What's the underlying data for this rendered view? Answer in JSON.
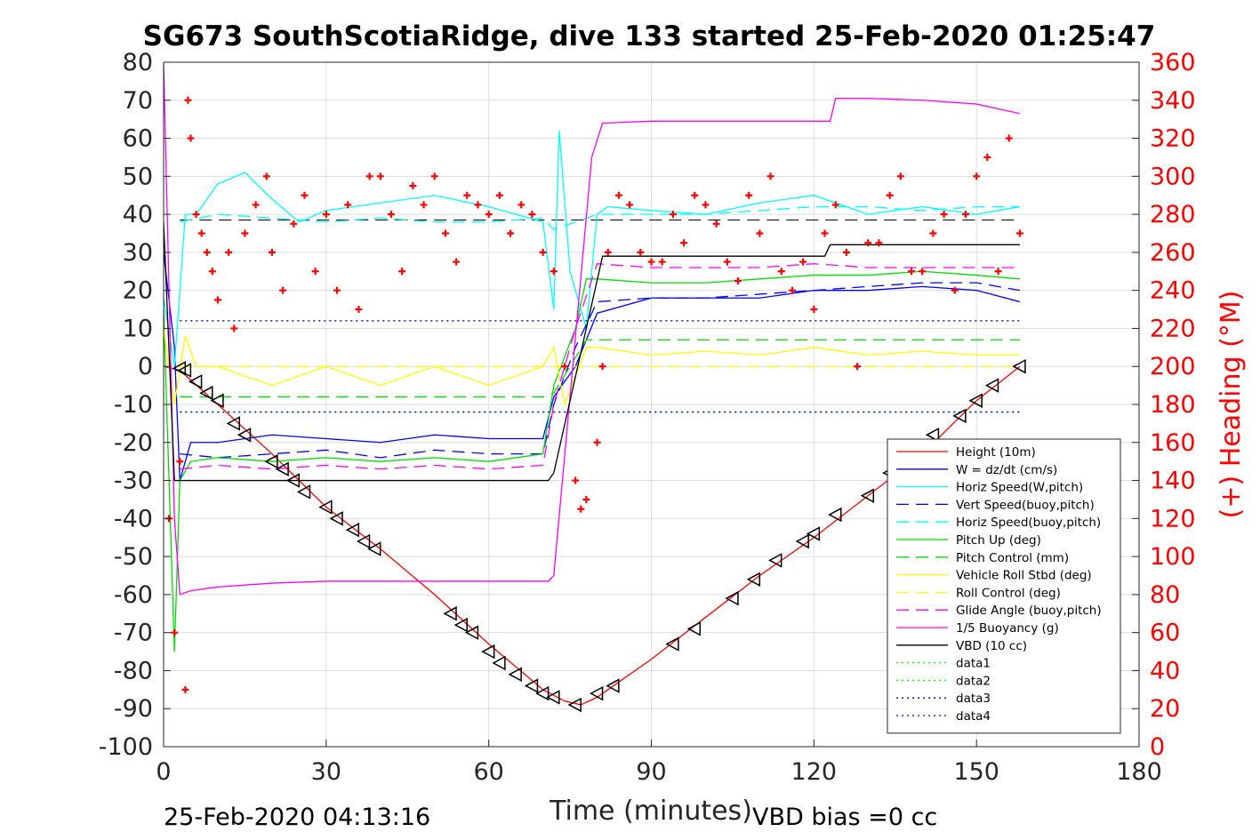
{
  "chart_data": {
    "type": "line",
    "title": "SG673 SouthScotiaRidge, dive 133 started 25-Feb-2020 01:25:47",
    "xlabel": "Time (minutes)",
    "ylabel": "",
    "ylabel_right": "(+) Heading (°M)",
    "xlim": [
      0,
      180
    ],
    "ylim": [
      -100,
      80
    ],
    "ylim_right": [
      0,
      360
    ],
    "x_ticks": [
      0,
      30,
      60,
      90,
      120,
      150,
      180
    ],
    "y_ticks": [
      80,
      70,
      60,
      50,
      40,
      30,
      20,
      10,
      0,
      -10,
      -20,
      -30,
      -40,
      -50,
      -60,
      -70,
      -80,
      -90,
      -100
    ],
    "y_right_ticks": [
      360,
      340,
      320,
      300,
      280,
      260,
      240,
      220,
      200,
      180,
      160,
      140,
      120,
      100,
      80,
      60,
      40,
      20,
      0
    ],
    "grid": true,
    "legend_position": "bottom-right",
    "footer_left": "25-Feb-2020 04:13:16",
    "footer_right": "VBD bias =0 cc",
    "series": [
      {
        "name": "Height (10m)",
        "color": "#ff0000",
        "style": "solid",
        "x": [
          0,
          3,
          10,
          20,
          30,
          40,
          50,
          60,
          70,
          74,
          77,
          80,
          90,
          100,
          110,
          120,
          130,
          140,
          150,
          158
        ],
        "y": [
          0,
          -1,
          -10,
          -23,
          -37,
          -48,
          -60,
          -73,
          -85,
          -88,
          -89,
          -87,
          -77,
          -66,
          -55,
          -45,
          -34,
          -23,
          -9,
          0
        ]
      },
      {
        "name": "W = dz/dt (cm/s)",
        "color": "#0000ff",
        "style": "solid",
        "x": [
          0,
          2,
          3,
          5,
          10,
          20,
          30,
          40,
          50,
          60,
          70,
          72,
          76,
          80,
          90,
          100,
          110,
          120,
          130,
          140,
          150,
          158
        ],
        "y": [
          30,
          5,
          -30,
          -20,
          -20,
          -18,
          -19,
          -20,
          -18,
          -19,
          -19,
          -8,
          0,
          14,
          18,
          18,
          18,
          20,
          20,
          21,
          20,
          17
        ]
      },
      {
        "name": "Horiz Speed(W,pitch)",
        "color": "#00ffff",
        "style": "solid",
        "x": [
          0,
          2,
          4,
          6,
          10,
          15,
          20,
          25,
          30,
          40,
          50,
          60,
          70,
          72,
          73,
          75,
          78,
          80,
          82,
          90,
          100,
          110,
          120,
          130,
          140,
          150,
          158
        ],
        "y": [
          18,
          0,
          40,
          40,
          48,
          51,
          44,
          38,
          41,
          43,
          45,
          42,
          38,
          15,
          62,
          25,
          10,
          40,
          42,
          41,
          40,
          43,
          45,
          40,
          42,
          40,
          42
        ]
      },
      {
        "name": "Vert Speed(buoy,pitch)",
        "color": "#0000ff",
        "style": "dashed",
        "x": [
          3,
          10,
          20,
          30,
          40,
          50,
          60,
          70,
          72,
          76,
          80,
          90,
          100,
          110,
          120,
          130,
          140,
          150,
          158
        ],
        "y": [
          -23,
          -24,
          -23,
          -22,
          -24,
          -22,
          -23,
          -23,
          -10,
          5,
          17,
          18,
          18,
          19,
          20,
          21,
          22,
          22,
          20
        ]
      },
      {
        "name": "Horiz Speed(buoy,pitch)",
        "color": "#00ffff",
        "style": "dashed",
        "x": [
          3,
          10,
          20,
          30,
          40,
          50,
          60,
          70,
          72,
          80,
          90,
          100,
          110,
          120,
          130,
          140,
          150,
          158
        ],
        "y": [
          38,
          40,
          39,
          38,
          39,
          38,
          38,
          39,
          36,
          40,
          40,
          40,
          41,
          42,
          42,
          41,
          42,
          42
        ]
      },
      {
        "name": "Pitch Up (deg)",
        "color": "#00dd00",
        "style": "solid",
        "x": [
          0,
          2,
          3,
          5,
          10,
          20,
          30,
          40,
          50,
          60,
          70,
          72,
          76,
          78,
          80,
          90,
          100,
          110,
          120,
          130,
          140,
          150,
          158
        ],
        "y": [
          15,
          -75,
          -30,
          -25,
          -24,
          -25,
          -24,
          -25,
          -24,
          -25,
          -23,
          -5,
          10,
          23,
          23,
          22,
          22,
          23,
          24,
          24,
          25,
          24,
          23
        ]
      },
      {
        "name": "Pitch Control (mm)",
        "color": "#00dd00",
        "style": "dashed",
        "x": [
          3,
          10,
          20,
          30,
          40,
          50,
          60,
          70,
          72,
          78,
          80,
          90,
          100,
          110,
          120,
          130,
          140,
          150,
          158
        ],
        "y": [
          -8,
          -8,
          -8,
          -8,
          -8,
          -8,
          -8,
          -8,
          -7,
          7,
          7,
          7,
          7,
          7,
          7,
          7,
          7,
          7,
          7
        ]
      },
      {
        "name": "Vehicle Roll Stbd (deg)",
        "color": "#ffff00",
        "style": "solid",
        "x": [
          0,
          2,
          4,
          6,
          10,
          20,
          30,
          40,
          50,
          60,
          70,
          72,
          74,
          78,
          80,
          90,
          100,
          110,
          120,
          130,
          140,
          150,
          158
        ],
        "y": [
          10,
          -10,
          8,
          0,
          0,
          -5,
          0,
          -5,
          0,
          -5,
          0,
          5,
          -10,
          5,
          5,
          3,
          4,
          3,
          5,
          3,
          4,
          3,
          3
        ]
      },
      {
        "name": "Roll Control (deg)",
        "color": "#ffff00",
        "style": "dashed",
        "x": [
          3,
          10,
          20,
          30,
          40,
          50,
          60,
          70,
          72,
          78,
          80,
          90,
          100,
          110,
          120,
          130,
          140,
          150,
          158
        ],
        "y": [
          0,
          0,
          0,
          0,
          0,
          0,
          0,
          0,
          0,
          0,
          0,
          0,
          0,
          0,
          0,
          0,
          0,
          0,
          0
        ]
      },
      {
        "name": "Glide Angle (buoy,pitch)",
        "color": "#ff00ff",
        "style": "dashed",
        "x": [
          3,
          10,
          20,
          30,
          40,
          50,
          60,
          70,
          72,
          76,
          80,
          90,
          100,
          110,
          120,
          130,
          140,
          150,
          158
        ],
        "y": [
          -27,
          -26,
          -27,
          -26,
          -27,
          -26,
          -27,
          -26,
          -10,
          10,
          27,
          26,
          26,
          26,
          27,
          26,
          26,
          26,
          26
        ]
      },
      {
        "name": "1/5 Buoyancy (g)",
        "color": "#ff00ff",
        "style": "solid",
        "x": [
          0,
          2,
          3,
          5,
          10,
          20,
          30,
          50,
          60,
          71,
          72,
          79,
          81,
          90,
          100,
          110,
          123,
          124,
          130,
          140,
          150,
          158
        ],
        "y": [
          80,
          -40,
          -60,
          -59,
          -58,
          -57,
          -56.5,
          -56.5,
          -56.5,
          -56.5,
          -55,
          55,
          64,
          64.5,
          64.5,
          64.5,
          64.5,
          70.5,
          70.5,
          70,
          69,
          66.5
        ]
      },
      {
        "name": "VBD (10 cc)",
        "color": "#000000",
        "style": "solid",
        "x": [
          0,
          2,
          3,
          71,
          72,
          81,
          82,
          122,
          123,
          158
        ],
        "y": [
          38,
          -30,
          -30,
          -30,
          -28,
          29,
          29,
          29,
          32,
          32
        ]
      },
      {
        "name": "data1",
        "color": "#00ff00",
        "style": "dotted",
        "x": [
          3,
          158
        ],
        "y": [
          12,
          12
        ]
      },
      {
        "name": "data2",
        "color": "#00ff00",
        "style": "dotted",
        "x": [
          3,
          158
        ],
        "y": [
          -12,
          -12
        ]
      },
      {
        "name": "data3",
        "color": "#0000aa",
        "style": "dotted",
        "x": [
          3,
          158
        ],
        "y": [
          12,
          12
        ]
      },
      {
        "name": "data4",
        "color": "#0000aa",
        "style": "dotted",
        "x": [
          3,
          158
        ],
        "y": [
          -12,
          -12
        ]
      }
    ],
    "vbd_upper_line": {
      "color": "#000000",
      "style": "dashed",
      "x": [
        3,
        158
      ],
      "y": [
        38.5,
        38.5
      ]
    },
    "height_markers": {
      "color": "#000000",
      "marker": "triangle-left",
      "x": [
        3,
        4,
        6,
        8,
        10,
        13,
        15,
        20,
        22,
        24,
        26,
        30,
        32,
        35,
        37,
        39,
        53,
        55,
        57,
        60,
        62,
        65,
        68,
        70,
        72,
        76,
        80,
        83,
        94,
        98,
        105,
        109,
        113,
        118,
        120,
        124,
        130,
        134,
        142,
        147,
        150,
        153,
        158
      ],
      "y": [
        -0.5,
        -1,
        -4,
        -7,
        -9,
        -15,
        -18,
        -25,
        -27,
        -30,
        -33,
        -37,
        -40,
        -43,
        -46,
        -48,
        -65,
        -68,
        -70,
        -75,
        -78,
        -81,
        -84,
        -86,
        -87,
        -89,
        -86,
        -84,
        -73,
        -69,
        -61,
        -56,
        -51,
        -46,
        -44,
        -39,
        -34,
        -28,
        -18,
        -13,
        -9,
        -5,
        0
      ]
    },
    "heading": {
      "name": "(+) Heading (°M)",
      "color": "#ff0000",
      "marker": "plus",
      "x": [
        1,
        2,
        3,
        4,
        4.5,
        5,
        6,
        7,
        8,
        9,
        10,
        12,
        13,
        15,
        17,
        19,
        20,
        22,
        24,
        26,
        28,
        30,
        32,
        34,
        36,
        38,
        40,
        42,
        44,
        46,
        48,
        50,
        52,
        54,
        56,
        58,
        60,
        62,
        64,
        66,
        68,
        70,
        72,
        74,
        76,
        77,
        78,
        80,
        81,
        82,
        84,
        86,
        88,
        90,
        92,
        94,
        96,
        98,
        100,
        102,
        104,
        106,
        108,
        110,
        112,
        114,
        116,
        118,
        120,
        122,
        124,
        126,
        128,
        130,
        132,
        134,
        136,
        138,
        140,
        142,
        144,
        146,
        148,
        150,
        152,
        154,
        156,
        158
      ],
      "y": [
        120,
        60,
        150,
        30,
        340,
        320,
        280,
        270,
        260,
        250,
        235,
        260,
        220,
        270,
        285,
        300,
        260,
        240,
        275,
        290,
        250,
        280,
        240,
        285,
        230,
        300,
        300,
        280,
        250,
        295,
        285,
        300,
        270,
        255,
        290,
        285,
        280,
        290,
        270,
        285,
        280,
        260,
        250,
        200,
        140,
        125,
        130,
        160,
        200,
        260,
        290,
        285,
        260,
        255,
        255,
        280,
        265,
        290,
        285,
        275,
        255,
        245,
        290,
        270,
        300,
        250,
        240,
        255,
        230,
        270,
        285,
        260,
        200,
        265,
        265,
        290,
        300,
        250,
        250,
        270,
        280,
        240,
        280,
        300,
        310,
        250,
        320,
        270
      ]
    }
  }
}
